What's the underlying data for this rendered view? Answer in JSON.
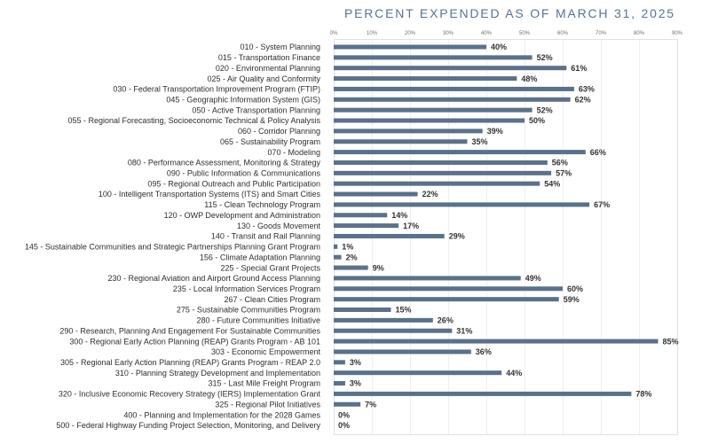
{
  "chart_data": {
    "type": "bar",
    "title": "PERCENT EXPENDED AS OF MARCH 31, 2025",
    "xlabel": "",
    "ylabel": "",
    "xlim": [
      0,
      90
    ],
    "xticks": [
      0,
      10,
      20,
      30,
      40,
      50,
      60,
      70,
      80,
      90
    ],
    "xtick_labels": [
      "0%",
      "10%",
      "20%",
      "30%",
      "40%",
      "50%",
      "60%",
      "70%",
      "80%",
      "90%"
    ],
    "value_suffix": "%",
    "categories": [
      "010 - System Planning",
      "015 - Transportation Finance",
      "020 - Environmental Planning",
      "025 - Air Quality and Conformity",
      "030 - Federal Transportation Improvement Program (FTIP)",
      "045 - Geographic Information System (GIS)",
      "050 - Active Transportation Planning",
      "055 - Regional Forecasting, Socioeconomic Technical & Policy Analysis",
      "060 - Corridor Planning",
      "065 - Sustainability Program",
      "070 - Modeling",
      "080 - Performance Assessment, Monitoring & Strategy",
      "090 - Public Information & Communications",
      "095 - Regional Outreach and Public Participation",
      "100 - Intelligent Transportation Systems (ITS) and Smart Cities",
      "115 - Clean Technology Program",
      "120 - OWP Development and Administration",
      "130 - Goods Movement",
      "140 - Transit and Rail Planning",
      "145 - Sustainable Communities and Strategic Partnerships Planning Grant Program",
      "156 - Climate Adaptation Planning",
      "225 - Special Grant Projects",
      "230 - Regional Aviation and Airport Ground Access Planning",
      "235 - Local Information Services Program",
      "267 - Clean Cities Program",
      "275 - Sustainable Communities Program",
      "280 - Future Communities Initiative",
      "290 - Research, Planning And Engagement For Sustainable Communities",
      "300 - Regional Early Action Planning (REAP) Grants Program - AB 101",
      "303 - Economic Empowerment",
      "305 - Regional Early Action Planning (REAP) Grants Program - REAP 2.0",
      "310 - Planning Strategy Development and Implementation",
      "315 - Last Mile Freight Program",
      "320 - Inclusive Economic Recovery Strategy (IERS) Implementation Grant",
      "325 - Regional Pilot Initiatives",
      "400 - Planning and Implementation for the 2028 Games",
      "500 - Federal Highway Funding Project Selection, Monitoring, and Delivery"
    ],
    "values": [
      40,
      52,
      61,
      48,
      63,
      62,
      52,
      50,
      39,
      35,
      66,
      56,
      57,
      54,
      22,
      67,
      14,
      17,
      29,
      1,
      2,
      9,
      49,
      60,
      59,
      15,
      26,
      31,
      85,
      36,
      3,
      44,
      3,
      78,
      7,
      0,
      0
    ]
  },
  "colors": {
    "bar": "#5b7189",
    "title": "#5a7390",
    "label_text": "#2e2e2e",
    "value_text": "#333333",
    "tick_text": "#707070",
    "grid": "#efefef",
    "frame": "#e0e0e0"
  }
}
